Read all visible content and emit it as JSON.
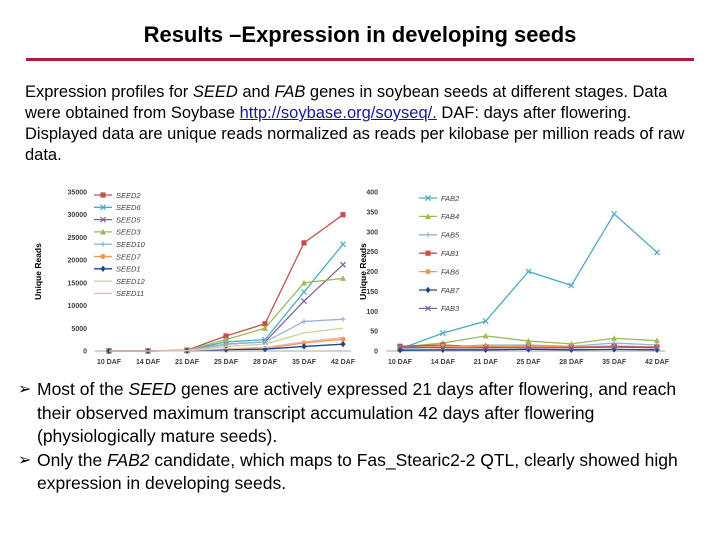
{
  "slide": {
    "title": "Results –Expression in developing seeds",
    "caption": {
      "p1": "Expression profiles for ",
      "seed": "SEED",
      "p2": " and ",
      "fab": "FAB",
      "p3": " genes in soybean seeds at different stages. Data were obtained from Soybase ",
      "link": "http://soybase.org/soyseq/.",
      "p4": " DAF: days after flowering. Displayed data are unique reads normalized as reads per kilobase per million reads of raw data."
    },
    "bullets": [
      {
        "arrow": "➢",
        "pre": "Most of the ",
        "em": "SEED",
        "post": " genes are actively expressed 21 days after flowering, and reach their observed maximum transcript accumulation 42 days after flowering (physiologically mature seeds)."
      },
      {
        "arrow": "➢",
        "pre": "Only the ",
        "em": "FAB2",
        "post": " candidate, which maps to Fas_Stearic2-2 QTL, clearly showed high expression in developing seeds."
      }
    ]
  },
  "chart_data": [
    {
      "type": "line",
      "title": "",
      "xlabel": "",
      "ylabel": "Unique Reads",
      "x": [
        "10 DAF",
        "14 DAF",
        "21 DAF",
        "25 DAF",
        "28 DAF",
        "35 DAF",
        "42 DAF"
      ],
      "ylim": [
        0,
        35000
      ],
      "yticks": [
        0,
        5000,
        10000,
        15000,
        20000,
        25000,
        30000,
        35000
      ],
      "legend": "top-left",
      "series": [
        {
          "name": "SEED2",
          "color": "#c0504d",
          "marker": "square",
          "values": [
            0,
            0,
            200,
            3300,
            6000,
            23800,
            30000
          ]
        },
        {
          "name": "SEED6",
          "color": "#4bacc6",
          "marker": "x",
          "values": [
            0,
            0,
            150,
            2000,
            2500,
            13000,
            23500
          ]
        },
        {
          "name": "SEED5",
          "color": "#7d60a0",
          "marker": "x",
          "values": [
            0,
            0,
            100,
            1500,
            2000,
            11000,
            19000
          ]
        },
        {
          "name": "SEED3",
          "color": "#9bbb59",
          "marker": "triangle",
          "values": [
            0,
            0,
            200,
            2500,
            5000,
            15000,
            16000
          ]
        },
        {
          "name": "SEED10",
          "color": "#95b3d7",
          "marker": "plus",
          "values": [
            0,
            0,
            100,
            1500,
            2000,
            6500,
            7000
          ]
        },
        {
          "name": "SEED7",
          "color": "#f79646",
          "marker": "circle",
          "values": [
            0,
            0,
            50,
            400,
            500,
            1800,
            2600
          ]
        },
        {
          "name": "SEED1",
          "color": "#1f497d",
          "marker": "diamond",
          "values": [
            0,
            0,
            50,
            300,
            400,
            1000,
            1500
          ]
        },
        {
          "name": "SEED12",
          "color": "#c3d69b",
          "marker": "none",
          "values": [
            0,
            0,
            100,
            1000,
            1500,
            4000,
            5000
          ]
        },
        {
          "name": "SEED11",
          "color": "#e6b9b8",
          "marker": "none",
          "values": [
            0,
            0,
            50,
            500,
            800,
            2000,
            3000
          ]
        }
      ]
    },
    {
      "type": "line",
      "title": "",
      "xlabel": "",
      "ylabel": "Unique Reads",
      "x": [
        "10 DAF",
        "14 DAF",
        "21 DAF",
        "25 DAF",
        "28 DAF",
        "35 DAF",
        "42 DAF"
      ],
      "ylim": [
        0,
        400
      ],
      "yticks": [
        0,
        50,
        100,
        150,
        200,
        250,
        300,
        350,
        400
      ],
      "legend": "top-left",
      "series": [
        {
          "name": "FAB2",
          "color": "#4bacc6",
          "marker": "x",
          "values": [
            5,
            45,
            75,
            200,
            165,
            345,
            248
          ]
        },
        {
          "name": "FAB4",
          "color": "#9bbb59",
          "marker": "triangle",
          "values": [
            10,
            20,
            38,
            25,
            18,
            32,
            26
          ]
        },
        {
          "name": "FAB5",
          "color": "#95b3d7",
          "marker": "plus",
          "values": [
            5,
            10,
            15,
            15,
            12,
            20,
            15
          ]
        },
        {
          "name": "FAB1",
          "color": "#c0504d",
          "marker": "square",
          "values": [
            12,
            15,
            10,
            12,
            10,
            12,
            10
          ]
        },
        {
          "name": "FAB6",
          "color": "#f79646",
          "marker": "circle",
          "values": [
            8,
            12,
            12,
            12,
            10,
            10,
            8
          ]
        },
        {
          "name": "FAB7",
          "color": "#1f497d",
          "marker": "diamond",
          "values": [
            2,
            3,
            3,
            4,
            3,
            4,
            3
          ]
        },
        {
          "name": "FAB3",
          "color": "#7d60a0",
          "marker": "x",
          "values": [
            10,
            8,
            8,
            8,
            8,
            10,
            8
          ]
        }
      ]
    }
  ]
}
